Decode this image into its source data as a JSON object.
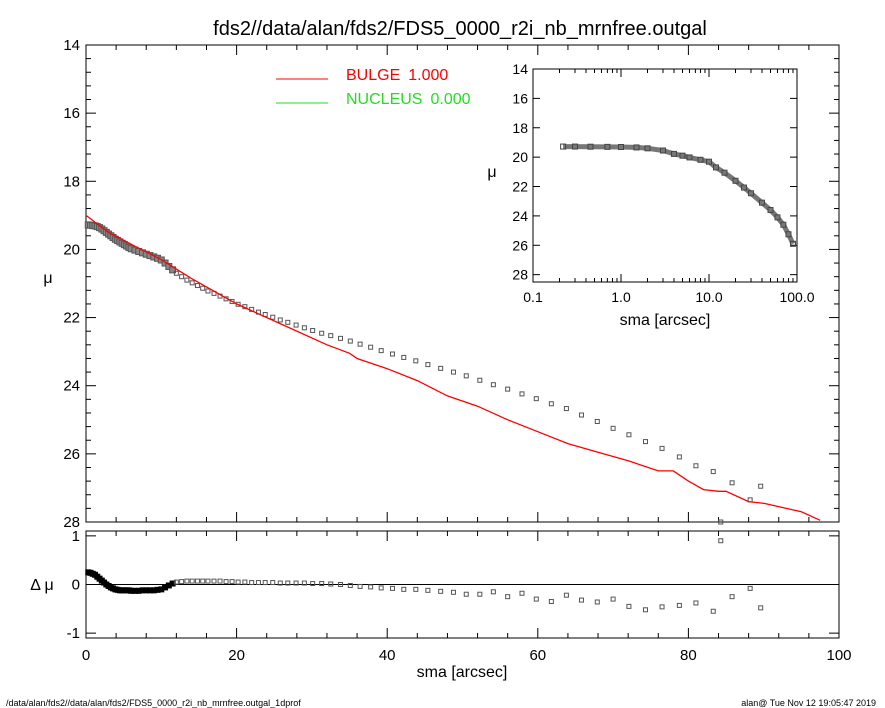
{
  "chart_data": [
    {
      "type": "scatter",
      "panel": "main",
      "title": "fds2//data/alan/fds2/FDS5_0000_r2i_nb_mrnfree.outgal",
      "xlabel": "",
      "ylabel": "μ",
      "xlim": [
        0,
        100
      ],
      "ylim": [
        28,
        14
      ],
      "y_inverted": true,
      "yticks": [
        "14",
        "16",
        "18",
        "20",
        "22",
        "24",
        "26",
        "28"
      ],
      "series": [
        {
          "name": "data",
          "marker": "open-square",
          "color": "#444444",
          "x": [
            0.3,
            0.6,
            0.9,
            1.2,
            1.5,
            1.8,
            2.1,
            2.4,
            2.7,
            3.0,
            3.3,
            3.6,
            3.9,
            4.2,
            4.5,
            4.8,
            5.1,
            5.4,
            5.7,
            6.0,
            6.5,
            7.0,
            7.5,
            8.0,
            8.5,
            9.0,
            9.5,
            10.0,
            10.5,
            11.0,
            11.5,
            12.0,
            12.7,
            13.4,
            14.1,
            14.8,
            15.5,
            16.2,
            17.0,
            17.8,
            18.6,
            19.4,
            20.2,
            21.1,
            22.0,
            22.9,
            23.8,
            24.8,
            25.8,
            26.8,
            27.9,
            29.0,
            30.1,
            31.3,
            32.5,
            33.8,
            35.1,
            36.4,
            37.8,
            39.2,
            40.7,
            42.2,
            43.8,
            45.4,
            47.1,
            48.8,
            50.5,
            52.3,
            54.1,
            56.0,
            57.9,
            59.8,
            61.8,
            63.8,
            65.8,
            67.9,
            70.0,
            72.1,
            74.3,
            76.5,
            78.8,
            81.0,
            83.3,
            84.3,
            85.8,
            88.2,
            89.6
          ],
          "y": [
            19.28,
            19.29,
            19.3,
            19.31,
            19.33,
            19.36,
            19.4,
            19.45,
            19.5,
            19.55,
            19.6,
            19.65,
            19.7,
            19.74,
            19.78,
            19.82,
            19.86,
            19.9,
            19.94,
            19.98,
            20.02,
            20.06,
            20.1,
            20.14,
            20.18,
            20.22,
            20.26,
            20.31,
            20.4,
            20.5,
            20.6,
            20.7,
            20.8,
            20.9,
            20.98,
            21.06,
            21.14,
            21.22,
            21.29,
            21.37,
            21.45,
            21.53,
            21.61,
            21.68,
            21.76,
            21.84,
            21.91,
            21.99,
            22.07,
            22.14,
            22.22,
            22.3,
            22.38,
            22.46,
            22.53,
            22.61,
            22.69,
            22.78,
            22.87,
            22.97,
            23.07,
            23.17,
            23.27,
            23.38,
            23.49,
            23.6,
            23.71,
            23.84,
            23.97,
            24.1,
            24.24,
            24.38,
            24.53,
            24.67,
            24.86,
            25.05,
            25.25,
            25.44,
            25.64,
            25.84,
            26.09,
            26.35,
            26.52,
            28.0,
            26.85,
            27.35,
            26.95
          ]
        },
        {
          "name": "BULGE",
          "value_label": "1.000",
          "color": "#ff0000",
          "type": "line",
          "x": [
            0,
            3,
            6,
            10,
            14,
            20,
            26,
            32,
            35,
            36,
            40,
            44,
            48,
            52,
            56,
            60,
            64,
            68,
            72,
            76,
            78,
            80,
            82,
            84,
            85,
            88,
            90,
            93,
            95,
            97.5
          ],
          "y": [
            19.0,
            19.5,
            19.85,
            20.3,
            20.85,
            21.6,
            22.2,
            22.8,
            23.05,
            23.2,
            23.5,
            23.85,
            24.3,
            24.6,
            25.0,
            25.35,
            25.7,
            25.95,
            26.2,
            26.5,
            26.5,
            26.8,
            27.05,
            27.1,
            27.1,
            27.4,
            27.45,
            27.6,
            27.7,
            27.95
          ]
        },
        {
          "name": "NUCLEUS",
          "value_label": "0.000",
          "color": "#22dd22",
          "type": "line",
          "x": [],
          "y": []
        }
      ],
      "legend_position": "top-left"
    },
    {
      "type": "scatter",
      "panel": "residual",
      "xlabel": "sma [arcsec]",
      "ylabel": "Δ μ",
      "xlim": [
        0,
        100
      ],
      "ylim": [
        -1.1,
        1.1
      ],
      "xticks": [
        "0",
        "20",
        "40",
        "60",
        "80",
        "100"
      ],
      "yticks": [
        "1",
        "0",
        "-1"
      ],
      "x": [
        0.3,
        0.6,
        0.9,
        1.2,
        1.5,
        1.8,
        2.1,
        2.4,
        2.7,
        3.0,
        3.3,
        3.6,
        3.9,
        4.2,
        4.5,
        4.8,
        5.1,
        5.4,
        5.7,
        6.0,
        6.5,
        7.0,
        7.5,
        8.0,
        8.5,
        9.0,
        9.5,
        10.0,
        10.5,
        11.0,
        11.5,
        12.0,
        12.7,
        13.4,
        14.1,
        14.8,
        15.5,
        16.2,
        17.0,
        17.8,
        18.6,
        19.4,
        20.2,
        21.1,
        22.0,
        22.9,
        23.8,
        24.8,
        25.8,
        26.8,
        27.9,
        29.0,
        30.1,
        31.3,
        32.5,
        33.8,
        35.1,
        36.4,
        37.8,
        39.2,
        40.7,
        42.2,
        43.8,
        45.4,
        47.1,
        48.8,
        50.5,
        52.3,
        54.1,
        56.0,
        57.9,
        59.8,
        61.8,
        63.8,
        65.8,
        67.9,
        70.0,
        72.1,
        74.3,
        76.5,
        78.8,
        81.0,
        83.3,
        84.3,
        85.8,
        88.2,
        89.6
      ],
      "y": [
        0.25,
        0.24,
        0.22,
        0.2,
        0.16,
        0.12,
        0.08,
        0.04,
        0.0,
        -0.03,
        -0.06,
        -0.08,
        -0.1,
        -0.11,
        -0.12,
        -0.12,
        -0.12,
        -0.12,
        -0.12,
        -0.13,
        -0.13,
        -0.13,
        -0.12,
        -0.12,
        -0.12,
        -0.12,
        -0.11,
        -0.1,
        -0.06,
        -0.02,
        0.02,
        0.05,
        0.06,
        0.07,
        0.07,
        0.07,
        0.07,
        0.07,
        0.07,
        0.07,
        0.06,
        0.06,
        0.05,
        0.05,
        0.04,
        0.04,
        0.04,
        0.04,
        0.03,
        0.03,
        0.03,
        0.03,
        0.02,
        0.02,
        0.01,
        0.0,
        -0.02,
        -0.04,
        -0.05,
        -0.07,
        -0.08,
        -0.1,
        -0.1,
        -0.12,
        -0.14,
        -0.16,
        -0.2,
        -0.2,
        -0.15,
        -0.25,
        -0.18,
        -0.3,
        -0.35,
        -0.22,
        -0.32,
        -0.36,
        -0.3,
        -0.45,
        -0.52,
        -0.46,
        -0.43,
        -0.38,
        -0.55,
        0.9,
        -0.25,
        -0.08,
        -0.48
      ]
    },
    {
      "type": "scatter",
      "panel": "inset",
      "xlabel": "sma [arcsec]",
      "ylabel": "μ",
      "x_scale": "log",
      "xlim": [
        0.1,
        100.0
      ],
      "ylim": [
        28.5,
        14
      ],
      "xticks": [
        "0.1",
        "1.0",
        "10.0",
        "100.0"
      ],
      "yticks": [
        "14",
        "16",
        "18",
        "20",
        "22",
        "24",
        "26",
        "28"
      ],
      "x": [
        0.22,
        0.3,
        0.45,
        0.7,
        1.0,
        1.5,
        2.0,
        3.0,
        4.0,
        5.0,
        6.0,
        8.0,
        10.0,
        12.0,
        15.0,
        20.0,
        25.0,
        30.0,
        40.0,
        50.0,
        60.0,
        70.0,
        80.0,
        90.0
      ],
      "y": [
        19.28,
        19.28,
        19.29,
        19.3,
        19.31,
        19.34,
        19.4,
        19.55,
        19.78,
        19.9,
        20.02,
        20.18,
        20.31,
        20.7,
        21.06,
        21.61,
        22.07,
        22.46,
        23.1,
        23.6,
        24.1,
        24.6,
        25.25,
        25.9
      ]
    }
  ],
  "footer": {
    "left": "/data/alan/fds2//data/alan/fds2/FDS5_0000_r2i_nb_mrnfree.outgal_1dprof",
    "right": "alan@  Tue Nov 12 19:05:47 2019"
  }
}
